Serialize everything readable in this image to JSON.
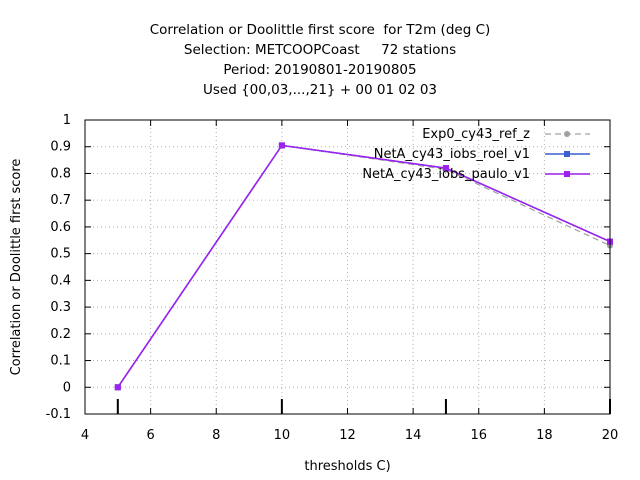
{
  "chart_data": {
    "type": "line",
    "title_lines": [
      "Correlation or Doolittle first score  for T2m (deg C)",
      "Selection: METCOOPCoast     72 stations",
      "Period: 20190801-20190805",
      "Used {00,03,...,21} + 00 01 02 03"
    ],
    "xlabel": "thresholds C)",
    "ylabel": "Correlation or Doolittle first score",
    "xlim": [
      4,
      20
    ],
    "ylim": [
      -0.1,
      1
    ],
    "xticks": [
      4,
      6,
      8,
      10,
      12,
      14,
      16,
      18,
      20
    ],
    "yticks": [
      -0.1,
      0,
      0.1,
      0.2,
      0.3,
      0.4,
      0.5,
      0.6,
      0.7,
      0.8,
      0.9,
      1
    ],
    "x_tick_labels": [
      "4",
      "6",
      "8",
      "10",
      "12",
      "14",
      "16",
      "18",
      "20"
    ],
    "y_tick_labels": [
      "-0.1",
      "0",
      "0.1",
      "0.2",
      "0.3",
      "0.4",
      "0.5",
      "0.6",
      "0.7",
      "0.8",
      "0.9",
      "1"
    ],
    "grid": true,
    "legend_position": "top-right",
    "series": [
      {
        "name": "Exp0_cy43_ref_z",
        "color": "#a0a0a0",
        "dashed": true,
        "marker": "circle",
        "x": [
          5,
          10,
          15,
          20
        ],
        "y": [
          0.0,
          0.905,
          0.815,
          0.53
        ]
      },
      {
        "name": "NetA_cy43_iobs_roel_v1",
        "color": "#3a5fd0",
        "dashed": false,
        "marker": "square",
        "x": [
          5,
          10,
          15,
          20
        ],
        "y": [
          0.0,
          0.905,
          0.82,
          0.545
        ]
      },
      {
        "name": "NetA_cy43_iobs_paulo_v1",
        "color": "#a020f0",
        "dashed": false,
        "marker": "square",
        "x": [
          5,
          10,
          15,
          20
        ],
        "y": [
          0.0,
          0.905,
          0.82,
          0.545
        ]
      }
    ],
    "observation_counts_marks": [
      5,
      10,
      15,
      20
    ]
  }
}
